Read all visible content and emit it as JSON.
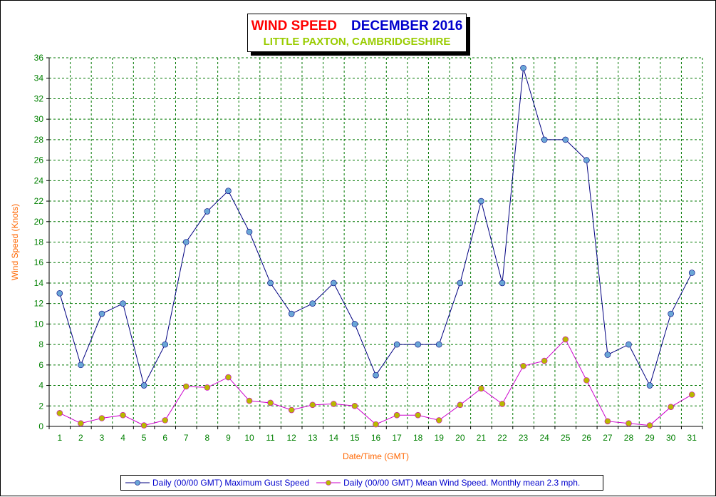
{
  "chart_data": {
    "type": "line",
    "title": "WIND SPEED",
    "title_period": "DECEMBER 2016",
    "subtitle": "LITTLE PAXTON, CAMBRIDGESHIRE",
    "xlabel": "Date/Time (GMT)",
    "ylabel": "Wind Speed (Knots)",
    "ylim": [
      0,
      36
    ],
    "ytick_step": 2,
    "grid": true,
    "legend_placement": "bottom",
    "categories": [
      "1",
      "2",
      "3",
      "4",
      "5",
      "6",
      "7",
      "8",
      "9",
      "10",
      "11",
      "12",
      "13",
      "14",
      "15",
      "16",
      "17",
      "18",
      "19",
      "20",
      "21",
      "22",
      "23",
      "24",
      "25",
      "26",
      "27",
      "28",
      "29",
      "30",
      "31"
    ],
    "series": [
      {
        "name": "Daily (00/00 GMT) Maximum Gust Speed",
        "line_color": "#000080",
        "marker_color": "#6aa6d6",
        "values": [
          13,
          6,
          11,
          12,
          4,
          8,
          18,
          21,
          23,
          19,
          14,
          11,
          12,
          14,
          10,
          5,
          8,
          8,
          8,
          14,
          22,
          14,
          35,
          28,
          28,
          26,
          7,
          8,
          4,
          11,
          15
        ]
      },
      {
        "name": "Daily (00/00 GMT) Mean Wind Speed. Monthly mean 2.3 mph.",
        "line_color": "#cc00cc",
        "marker_color": "#b8b800",
        "values": [
          1.3,
          0.3,
          0.8,
          1.1,
          0.1,
          0.6,
          3.9,
          3.8,
          4.8,
          2.5,
          2.3,
          1.6,
          2.1,
          2.2,
          2.0,
          0.2,
          1.1,
          1.1,
          0.6,
          2.1,
          3.7,
          2.2,
          5.9,
          6.4,
          8.5,
          4.5,
          0.5,
          0.3,
          0.1,
          1.9,
          3.1
        ]
      }
    ]
  },
  "colors": {
    "grid": "#007700",
    "tick_labels": "#008000",
    "axis_labels": "#ff6600",
    "legend_text": "#0000cc"
  }
}
